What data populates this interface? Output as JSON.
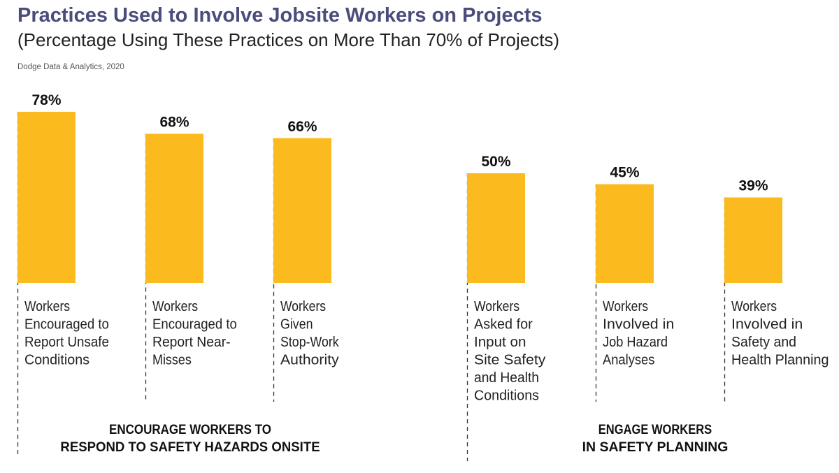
{
  "chart_data": {
    "type": "bar",
    "title": "Practices Used to Involve Jobsite Workers on Projects",
    "subtitle": "(Percentage Using These Practices on More Than 70% of Projects)",
    "source": "Dodge Data & Analytics, 2020",
    "ylim": [
      0,
      100
    ],
    "bar_color": "#FBBA1E",
    "grid": false,
    "categories": [
      [
        "Workers",
        "Encouraged to",
        "Report Unsafe",
        "Conditions"
      ],
      [
        "Workers",
        "Encouraged to",
        "Report Near-",
        "Misses"
      ],
      [
        "Workers",
        "Given",
        "Stop-Work",
        "Authority"
      ],
      [
        "Workers",
        "Asked for",
        "Input on",
        "Site Safety",
        "and Health",
        "Conditions"
      ],
      [
        "Workers",
        "Involved in",
        "Job Hazard",
        "Analyses"
      ],
      [
        "Workers",
        "Involved in",
        "Safety and",
        "Health Planning"
      ]
    ],
    "values": [
      78,
      68,
      66,
      50,
      45,
      39
    ],
    "data_labels": [
      "78%",
      "68%",
      "66%",
      "50%",
      "45%",
      "39%"
    ],
    "groups": [
      {
        "label": [
          "ENCOURAGE WORKERS TO",
          "RESPOND TO SAFETY HAZARDS ONSITE"
        ],
        "members": [
          0,
          1,
          2
        ]
      },
      {
        "label": [
          "ENGAGE WORKERS",
          "IN SAFETY PLANNING"
        ],
        "members": [
          3,
          4,
          5
        ]
      }
    ]
  }
}
